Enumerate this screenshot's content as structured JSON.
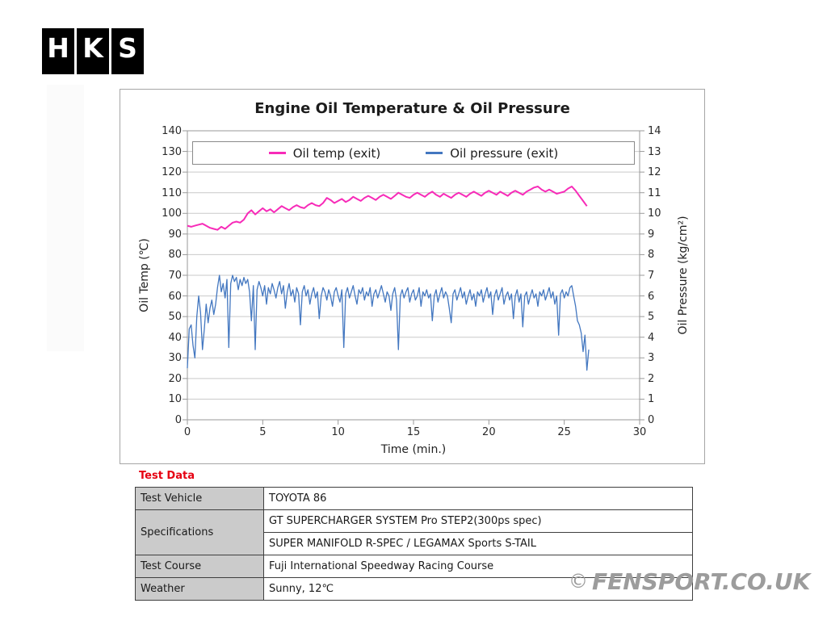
{
  "logo": {
    "letters": [
      "H",
      "K",
      "S"
    ]
  },
  "watermark": {
    "copyright": "©",
    "text": "FENSPORT.CO.UK"
  },
  "test_data": {
    "heading": "Test Data",
    "rows": [
      {
        "label": "Test Vehicle",
        "value": "TOYOTA 86"
      },
      {
        "label": "Specifications",
        "values": [
          "GT SUPERCHARGER SYSTEM Pro STEP2(300ps spec)",
          "SUPER MANIFOLD R-SPEC / LEGAMAX Sports S-TAIL"
        ]
      },
      {
        "label": "Test Course",
        "value": "Fuji International Speedway Racing Course"
      },
      {
        "label": "Weather",
        "value": "Sunny, 12℃"
      }
    ]
  },
  "colors": {
    "grid": "#c9c9c9",
    "axis": "#9a9a9a",
    "tick_text": "#2a2a2a",
    "title_text": "#1c1c1c",
    "heading_red": "#e60012",
    "table_header_bg": "#cbcbcb",
    "table_border": "#3f3f3f",
    "watermark_gray": "#9c9c9c",
    "logo_black": "#000000"
  },
  "chart_data": {
    "type": "line",
    "title": "Engine Oil Temperature & Oil Pressure",
    "xlabel": "Time (min.)",
    "ylabel_left": "Oil Temp (℃)",
    "ylabel_right": "Oil Pressure (kg/cm²)",
    "grid": true,
    "legend_position": "top",
    "xlim": [
      0,
      30
    ],
    "x_ticks": [
      0,
      5,
      10,
      15,
      20,
      25,
      30
    ],
    "ylim_left": [
      0,
      140
    ],
    "left_ticks": [
      0,
      10,
      20,
      30,
      40,
      50,
      60,
      70,
      80,
      90,
      100,
      110,
      120,
      130,
      140
    ],
    "ylim_right": [
      0,
      14
    ],
    "right_ticks": [
      0,
      1,
      2,
      3,
      4,
      5,
      6,
      7,
      8,
      9,
      10,
      11,
      12,
      13,
      14
    ],
    "series": [
      {
        "name": "Oil temp (exit)",
        "axis": "left",
        "color": "#f72bb8",
        "t0": 0,
        "dt": 0.25,
        "values": [
          94,
          93.5,
          94,
          94.5,
          95,
          94,
          93,
          92.5,
          92,
          93.5,
          92.5,
          94,
          95.5,
          96,
          95.5,
          97,
          100,
          101.5,
          99.5,
          101,
          102.5,
          101,
          102,
          100.5,
          102,
          103.5,
          102.5,
          101.5,
          103,
          104,
          103,
          102.5,
          104,
          105,
          104,
          103.5,
          105,
          107.5,
          106.5,
          105,
          106,
          107,
          105.5,
          106.5,
          108,
          107,
          106,
          107.5,
          108.5,
          107.5,
          106.5,
          108,
          109,
          108,
          107,
          108.5,
          110,
          109,
          108,
          107.5,
          109,
          110,
          109,
          108,
          109.5,
          110.5,
          109,
          108,
          109.5,
          108.5,
          107.5,
          109,
          110,
          109,
          108,
          109.5,
          110.5,
          109.5,
          108.5,
          110,
          111,
          110,
          109,
          110.5,
          109.5,
          108.5,
          110,
          111,
          110,
          109,
          110.5,
          111.5,
          112.5,
          113,
          111.5,
          110.5,
          111.5,
          110.5,
          109.5,
          110,
          110.5,
          112,
          113,
          111,
          108.5,
          106,
          103.5
        ]
      },
      {
        "name": "Oil pressure (exit)",
        "axis": "right",
        "color": "#4377c0",
        "t0": 0,
        "dt": 0.125,
        "values": [
          2.5,
          4.4,
          4.6,
          3.6,
          3.0,
          5.0,
          6.0,
          5.2,
          3.4,
          4.4,
          5.6,
          4.7,
          5.4,
          5.8,
          5.1,
          5.6,
          6.4,
          7.0,
          6.2,
          6.6,
          5.9,
          6.8,
          3.5,
          6.6,
          7.0,
          6.7,
          6.9,
          6.3,
          6.8,
          6.5,
          6.9,
          6.6,
          6.8,
          6.2,
          4.8,
          6.5,
          3.4,
          6.3,
          6.7,
          6.4,
          6.0,
          6.5,
          5.6,
          6.4,
          6.1,
          6.6,
          6.3,
          5.9,
          6.4,
          6.7,
          6.1,
          6.5,
          5.4,
          6.2,
          6.6,
          6.0,
          6.3,
          5.7,
          6.4,
          6.1,
          4.6,
          6.2,
          6.5,
          6.0,
          6.3,
          5.6,
          6.1,
          6.4,
          5.9,
          6.2,
          4.9,
          6.0,
          6.4,
          6.2,
          5.8,
          6.3,
          6.0,
          5.5,
          6.2,
          6.4,
          6.0,
          5.7,
          6.3,
          3.5,
          6.1,
          6.4,
          5.9,
          6.2,
          6.5,
          6.0,
          5.6,
          6.3,
          6.1,
          6.4,
          5.8,
          6.2,
          6.0,
          6.4,
          5.5,
          6.1,
          6.3,
          5.9,
          6.2,
          6.5,
          6.1,
          5.7,
          6.2,
          6.0,
          5.3,
          6.1,
          6.4,
          5.8,
          3.4,
          6.0,
          6.3,
          5.9,
          6.2,
          6.4,
          5.7,
          6.1,
          6.3,
          5.8,
          6.0,
          6.4,
          5.5,
          6.2,
          6.0,
          6.3,
          5.9,
          6.1,
          4.8,
          6.0,
          6.3,
          5.7,
          6.1,
          6.4,
          5.9,
          6.2,
          6.0,
          5.4,
          4.7,
          6.1,
          6.3,
          5.8,
          6.1,
          6.4,
          5.9,
          6.2,
          5.6,
          6.0,
          6.3,
          5.8,
          6.1,
          5.5,
          6.2,
          6.0,
          6.3,
          5.7,
          6.1,
          6.4,
          5.9,
          6.2,
          5.1,
          6.0,
          6.3,
          5.8,
          6.1,
          6.4,
          5.6,
          6.0,
          6.2,
          5.8,
          6.1,
          4.9,
          6.0,
          6.3,
          5.7,
          6.1,
          4.5,
          6.0,
          6.2,
          5.6,
          6.0,
          6.3,
          5.9,
          6.1,
          5.5,
          6.2,
          6.0,
          6.3,
          5.8,
          6.1,
          6.4,
          5.9,
          6.2,
          5.6,
          6.0,
          4.1,
          6.1,
          6.3,
          5.9,
          6.2,
          6.0,
          6.4,
          6.5,
          6.0,
          5.5,
          4.8,
          4.6,
          4.2,
          3.3,
          4.1,
          2.4,
          3.4
        ]
      }
    ]
  }
}
